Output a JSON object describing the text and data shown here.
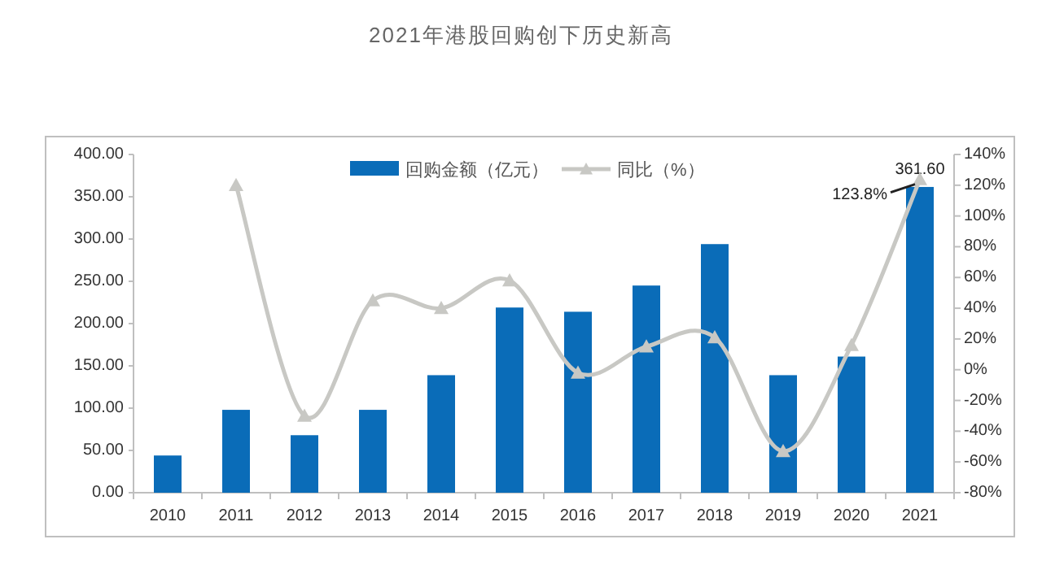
{
  "chart_data": {
    "type": "bar",
    "title": "2021年港股回购创下历史新高",
    "categories": [
      "2010",
      "2011",
      "2012",
      "2013",
      "2014",
      "2015",
      "2016",
      "2017",
      "2018",
      "2019",
      "2020",
      "2021"
    ],
    "series": [
      {
        "name": "回购金额（亿元）",
        "color": "#0a6cb8",
        "values": [
          44,
          98,
          68,
          98,
          139,
          219,
          214,
          245,
          294,
          139,
          161,
          361.6
        ],
        "value_labels": [
          null,
          null,
          null,
          null,
          null,
          null,
          null,
          null,
          null,
          null,
          null,
          "361.60"
        ]
      },
      {
        "name": "同比（%）",
        "type": "line",
        "axis": "y2",
        "color": "#c8c8c4",
        "marker": "triangle",
        "values": [
          null,
          120,
          -30,
          45,
          40,
          58,
          -2,
          15,
          21,
          -53,
          16,
          123.8
        ],
        "value_labels": [
          null,
          null,
          null,
          null,
          null,
          null,
          null,
          null,
          null,
          null,
          null,
          "123.8%"
        ]
      }
    ],
    "ylim": [
      0,
      400
    ],
    "yticks": [
      {
        "value": 0,
        "label": "0.00"
      },
      {
        "value": 50,
        "label": "50.00"
      },
      {
        "value": 100,
        "label": "100.00"
      },
      {
        "value": 150,
        "label": "150.00"
      },
      {
        "value": 200,
        "label": "200.00"
      },
      {
        "value": 250,
        "label": "250.00"
      },
      {
        "value": 300,
        "label": "300.00"
      },
      {
        "value": 350,
        "label": "350.00"
      },
      {
        "value": 400,
        "label": "400.00"
      }
    ],
    "y2lim": [
      -80,
      140
    ],
    "y2ticks": [
      {
        "value": -80,
        "label": "-80%"
      },
      {
        "value": -60,
        "label": "-60%"
      },
      {
        "value": -40,
        "label": "-40%"
      },
      {
        "value": -20,
        "label": "-20%"
      },
      {
        "value": 0,
        "label": "0%"
      },
      {
        "value": 20,
        "label": "20%"
      },
      {
        "value": 40,
        "label": "40%"
      },
      {
        "value": 60,
        "label": "60%"
      },
      {
        "value": 80,
        "label": "80%"
      },
      {
        "value": 100,
        "label": "100%"
      },
      {
        "value": 120,
        "label": "120%"
      },
      {
        "value": 140,
        "label": "140%"
      }
    ],
    "legend": "top",
    "grid": false
  }
}
